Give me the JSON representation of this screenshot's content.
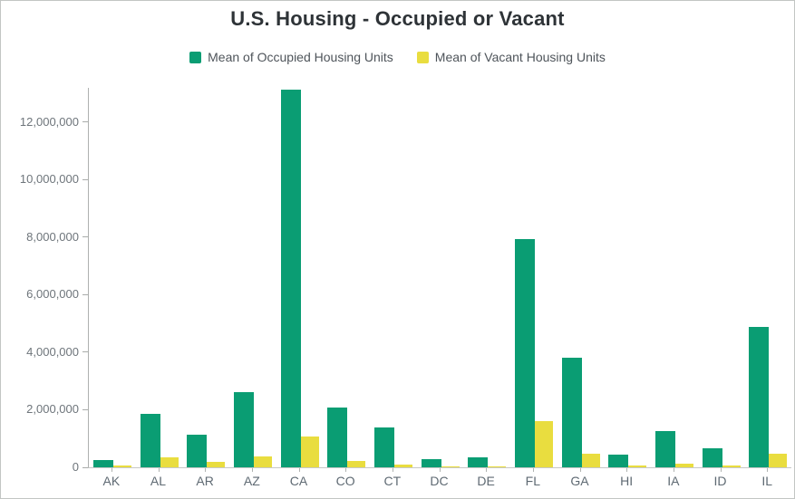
{
  "chart_data": {
    "type": "bar",
    "title": "U.S. Housing - Occupied or Vacant",
    "categories": [
      "AK",
      "AL",
      "AR",
      "AZ",
      "CA",
      "CO",
      "CT",
      "DC",
      "DE",
      "FL",
      "GA",
      "HI",
      "IA",
      "ID",
      "IL"
    ],
    "series": [
      {
        "name": "Mean of Occupied Housing Units",
        "color": "#0a9d73",
        "values": [
          260000,
          1860000,
          1130000,
          2600000,
          13130000,
          2090000,
          1370000,
          270000,
          350000,
          7920000,
          3810000,
          440000,
          1250000,
          645000,
          4880000
        ]
      },
      {
        "name": "Mean of Vacant Housing Units",
        "color": "#e9dd3f",
        "values": [
          57000,
          352000,
          195000,
          371000,
          1085000,
          214000,
          110000,
          30000,
          46000,
          1610000,
          465000,
          69000,
          120000,
          69000,
          470000
        ]
      }
    ],
    "xlabel": "",
    "ylabel": "",
    "yticks": [
      0,
      2000000,
      4000000,
      6000000,
      8000000,
      10000000,
      12000000
    ],
    "ylim": [
      0,
      13180000
    ],
    "grid": false,
    "legend_position": "top"
  },
  "colors": {
    "occupied": "#0a9d73",
    "vacant": "#e9dd3f",
    "axis_line": "#aeb1af",
    "baseline": "#c6c8c6",
    "title_text": "#2e3337",
    "legend_text": "#4e545a",
    "tick_text": "#6e757b"
  }
}
